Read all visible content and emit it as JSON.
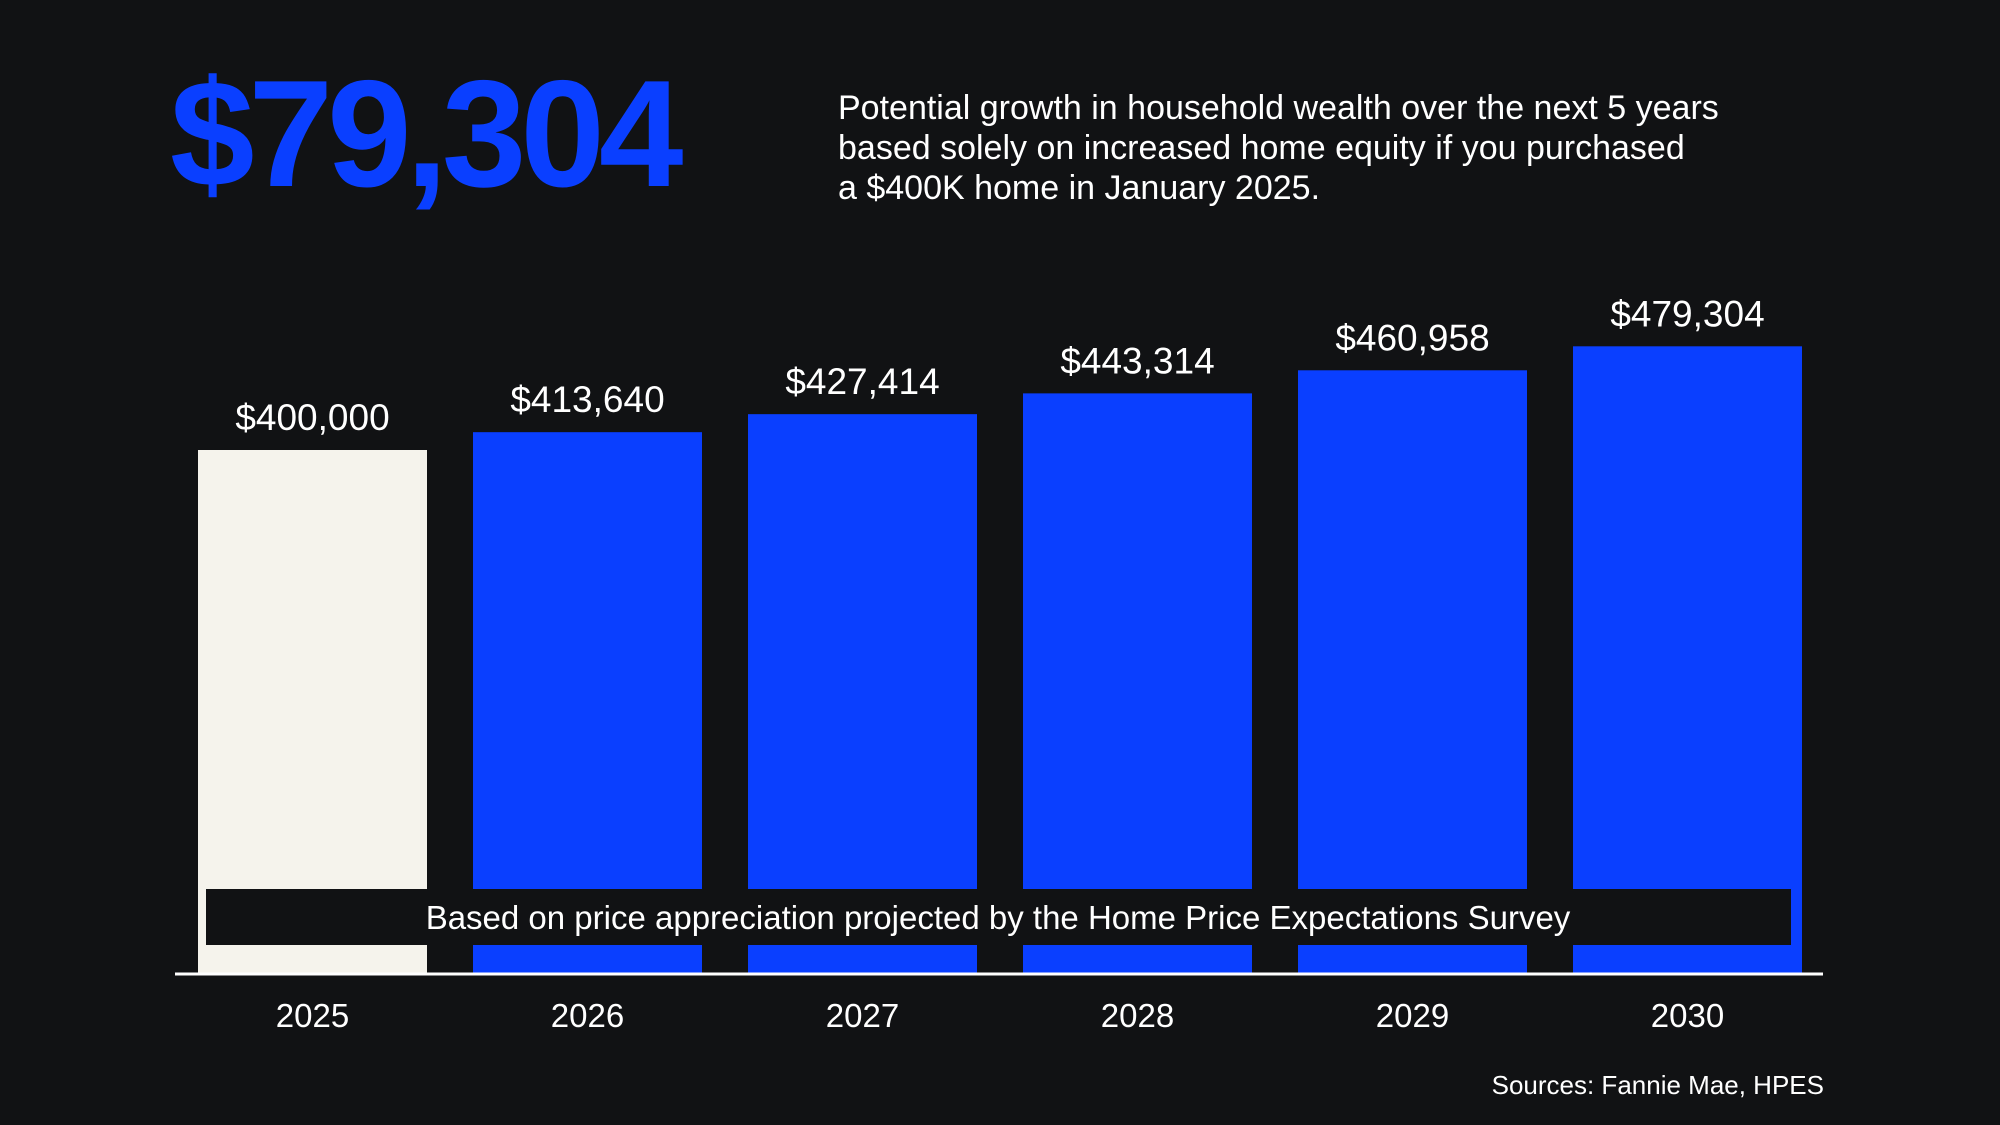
{
  "header": {
    "headline": "$79,304",
    "description_lines": [
      "Potential growth in household wealth over the next 5 years",
      "based solely on increased home equity if you purchased",
      "a $400K home in January 2025."
    ]
  },
  "colors": {
    "background": "#111214",
    "accent_blue": "#0A3FFF",
    "base_bar": "#F5F3EC",
    "text": "#FFFFFF"
  },
  "chart_data": {
    "type": "bar",
    "categories": [
      "2025",
      "2026",
      "2027",
      "2028",
      "2029",
      "2030"
    ],
    "values": [
      400000,
      413640,
      427414,
      443314,
      460958,
      479304
    ],
    "value_labels": [
      "$400,000",
      "$413,640",
      "$427,414",
      "$443,314",
      "$460,958",
      "$479,304"
    ],
    "bar_colors": [
      "#F5F3EC",
      "#0A3FFF",
      "#0A3FFF",
      "#0A3FFF",
      "#0A3FFF",
      "#0A3FFF"
    ],
    "annotation": "Based on price appreciation projected by the Home Price Expectations Survey",
    "grid": false,
    "legend": "none",
    "title": "",
    "xlabel": "",
    "ylabel": ""
  },
  "footer": {
    "source": "Sources: Fannie Mae, HPES"
  }
}
